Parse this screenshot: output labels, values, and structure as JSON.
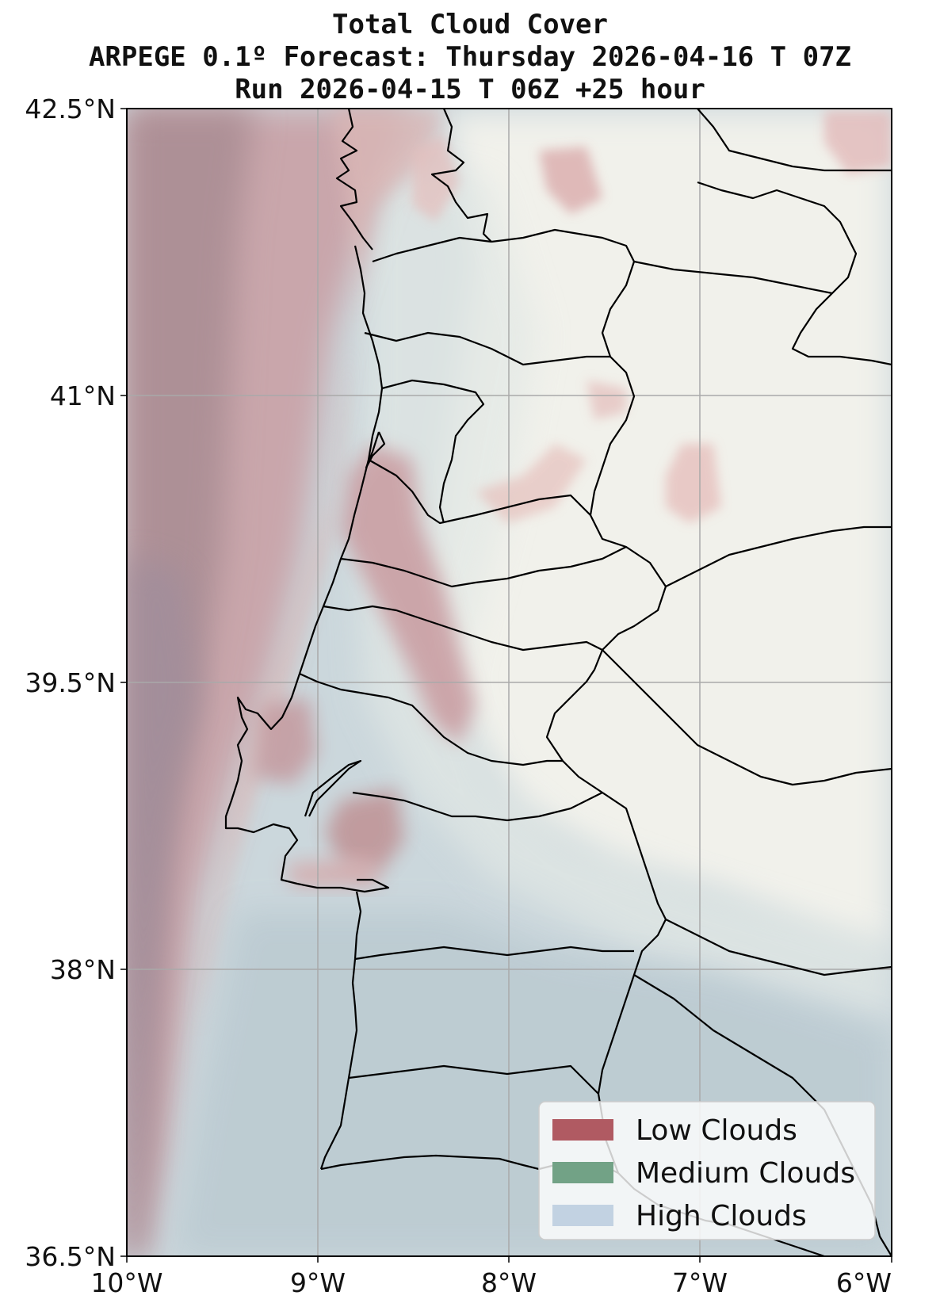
{
  "title": {
    "line1": "Total Cloud Cover",
    "line2": "ARPEGE 0.1º Forecast: Thursday 2026-04-16 T 07Z",
    "line3": "Run 2026-04-15 T 06Z +25 hour"
  },
  "axes": {
    "lat_ticks": [
      "42.5°N",
      "41°N",
      "39.5°N",
      "38°N",
      "36.5°N"
    ],
    "lon_ticks": [
      "10°W",
      "9°W",
      "8°W",
      "7°W",
      "6°W"
    ],
    "lon_range": [
      -10,
      -6
    ],
    "lat_range": [
      36.5,
      42.5
    ],
    "grid": true
  },
  "legend": {
    "placement": "bottom-right",
    "items": [
      {
        "label": "Low Clouds",
        "color": "#b05a62"
      },
      {
        "label": "Medium Clouds",
        "color": "#72a286"
      },
      {
        "label": "High Clouds",
        "color": "#c2d2e2"
      }
    ]
  },
  "colors": {
    "low_cloud": "#b05a62",
    "medium_cloud": "#72a286",
    "high_cloud": "#c2d2e2",
    "land_clear": "#f1f1eb",
    "border": "#000000",
    "grid": "#a9a9a9"
  }
}
